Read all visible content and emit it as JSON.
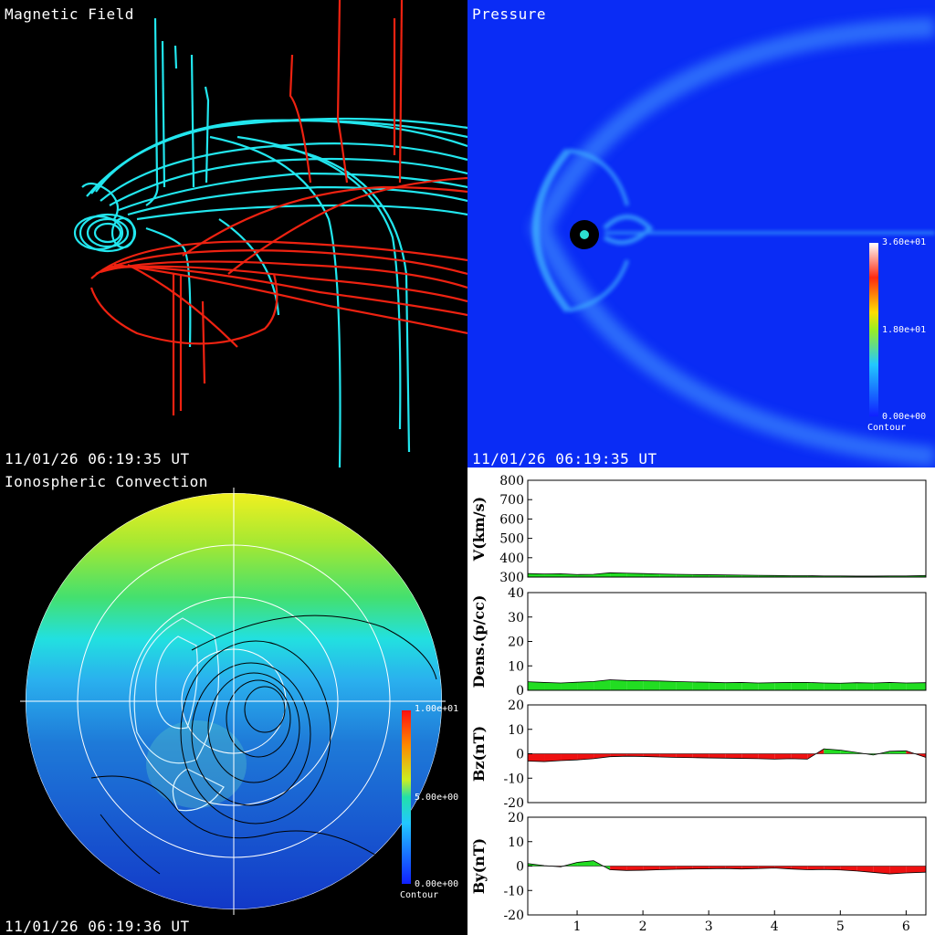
{
  "magnetic": {
    "title": "Magnetic Field",
    "timestamp": "11/01/26 06:19:35 UT"
  },
  "pressure": {
    "title": "Pressure",
    "timestamp": "11/01/26 06:19:35 UT",
    "colorbar": {
      "max": "3.60e+01",
      "mid": "1.80e+01",
      "min": "0.00e+00",
      "label": "Contour"
    }
  },
  "iono": {
    "title": "Ionospheric Convection",
    "timestamp": "11/01/26 06:19:36 UT",
    "colorbar": {
      "max": "1.00e+01",
      "mid": "5.00e+00",
      "min": "0.00e+00",
      "label": "Contour"
    }
  },
  "colors": {
    "north_field": "#22e6ee",
    "south_field": "#ee2211",
    "pressure_bg": "#0a2cf5",
    "positive": "#22dd22",
    "negative": "#ee1111"
  },
  "chart_data": [
    {
      "type": "area",
      "ylabel": "V(km/s)",
      "ylim": [
        300,
        800
      ],
      "yticks": [
        300,
        400,
        500,
        600,
        700,
        800
      ],
      "x": [
        0.25,
        0.5,
        0.75,
        1.0,
        1.25,
        1.5,
        1.75,
        2.0,
        2.25,
        2.5,
        2.75,
        3.0,
        3.25,
        3.5,
        3.75,
        4.0,
        4.25,
        4.5,
        4.75,
        5.0,
        5.25,
        5.5,
        5.75,
        6.0,
        6.3
      ],
      "values": [
        318,
        316,
        317,
        313,
        314,
        322,
        320,
        318,
        316,
        314,
        313,
        312,
        311,
        310,
        309,
        308,
        307,
        307,
        306,
        306,
        305,
        305,
        306,
        306,
        308
      ]
    },
    {
      "type": "area",
      "ylabel": "Dens.(p/cc)",
      "ylim": [
        0,
        40
      ],
      "yticks": [
        0,
        10,
        20,
        30,
        40
      ],
      "x": [
        0.25,
        0.5,
        0.75,
        1.0,
        1.25,
        1.5,
        1.75,
        2.0,
        2.25,
        2.5,
        2.75,
        3.0,
        3.25,
        3.5,
        3.75,
        4.0,
        4.25,
        4.5,
        4.75,
        5.0,
        5.25,
        5.5,
        5.75,
        6.0,
        6.3
      ],
      "values": [
        3.5,
        3.2,
        3.0,
        3.3,
        3.6,
        4.3,
        4.0,
        3.9,
        3.8,
        3.6,
        3.4,
        3.3,
        3.1,
        3.2,
        3.0,
        3.1,
        3.2,
        3.2,
        3.0,
        2.9,
        3.1,
        3.0,
        3.2,
        3.0,
        3.1
      ]
    },
    {
      "type": "area",
      "ylabel": "Bz(nT)",
      "ylim": [
        -20,
        20
      ],
      "yticks": [
        -20,
        -10,
        0,
        10,
        20
      ],
      "x": [
        0.25,
        0.5,
        0.75,
        1.0,
        1.25,
        1.5,
        1.75,
        2.0,
        2.25,
        2.5,
        2.75,
        3.0,
        3.25,
        3.5,
        3.75,
        4.0,
        4.25,
        4.5,
        4.75,
        5.0,
        5.25,
        5.5,
        5.75,
        6.0,
        6.3
      ],
      "values": [
        -3.0,
        -3.2,
        -2.8,
        -2.5,
        -2.0,
        -1.2,
        -1.0,
        -1.1,
        -1.3,
        -1.5,
        -1.6,
        -1.7,
        -1.8,
        -1.9,
        -2.0,
        -2.2,
        -2.0,
        -2.2,
        2.0,
        1.5,
        0.5,
        -0.5,
        1.0,
        1.2,
        -1.5
      ]
    },
    {
      "type": "area",
      "ylabel": "By(nT)",
      "ylim": [
        -20,
        20
      ],
      "yticks": [
        -20,
        -10,
        0,
        10,
        20
      ],
      "xticks": [
        1,
        2,
        3,
        4,
        5,
        6
      ],
      "x": [
        0.25,
        0.5,
        0.75,
        1.0,
        1.25,
        1.5,
        1.75,
        2.0,
        2.25,
        2.5,
        2.75,
        3.0,
        3.25,
        3.5,
        3.75,
        4.0,
        4.25,
        4.5,
        4.75,
        5.0,
        5.25,
        5.5,
        5.75,
        6.0,
        6.3
      ],
      "values": [
        1.0,
        0.2,
        -0.3,
        1.5,
        2.2,
        -1.5,
        -1.8,
        -1.7,
        -1.5,
        -1.3,
        -1.2,
        -1.1,
        -1.0,
        -1.2,
        -1.0,
        -0.8,
        -1.2,
        -1.5,
        -1.4,
        -1.6,
        -2.0,
        -2.6,
        -3.2,
        -2.8,
        -2.5
      ]
    }
  ]
}
